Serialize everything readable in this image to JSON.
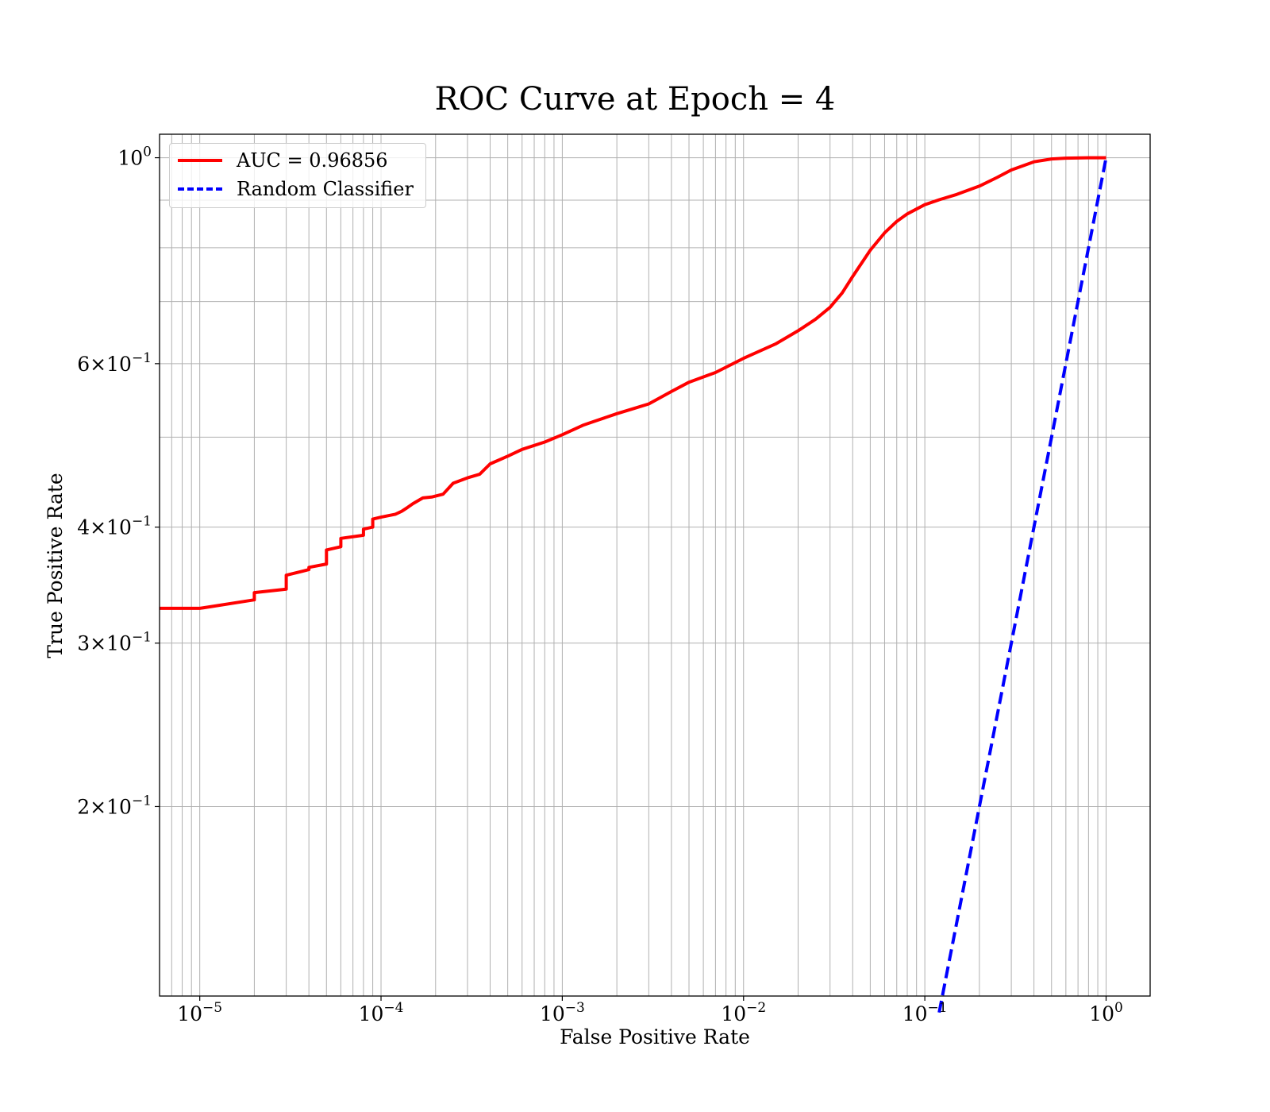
{
  "chart_data": {
    "type": "line",
    "title": "ROC Curve at Epoch = 4",
    "xlabel": "False Positive Rate",
    "ylabel": "True Positive Rate",
    "xscale": "log",
    "yscale": "log",
    "xlim": [
      6e-06,
      1.75
    ],
    "ylim": [
      0.125,
      1.06
    ],
    "grid": "on (major and minor)",
    "legend_position": "upper-left",
    "x_tick_labels": [
      {
        "value": 1e-05,
        "base": "10",
        "exp": "−5"
      },
      {
        "value": 0.0001,
        "base": "10",
        "exp": "−4"
      },
      {
        "value": 0.001,
        "base": "10",
        "exp": "−3"
      },
      {
        "value": 0.01,
        "base": "10",
        "exp": "−2"
      },
      {
        "value": 0.1,
        "base": "10",
        "exp": "−1"
      },
      {
        "value": 1,
        "base": "10",
        "exp": "0"
      }
    ],
    "y_tick_labels": [
      {
        "value": 1,
        "mant": "",
        "base": "10",
        "exp": "0"
      },
      {
        "value": 0.6,
        "mant": "6×",
        "base": "10",
        "exp": "−1"
      },
      {
        "value": 0.4,
        "mant": "4×",
        "base": "10",
        "exp": "−1"
      },
      {
        "value": 0.3,
        "mant": "3×",
        "base": "10",
        "exp": "−1"
      },
      {
        "value": 0.2,
        "mant": "2×",
        "base": "10",
        "exp": "−1"
      }
    ],
    "series": [
      {
        "name": "AUC = 0.96856",
        "color": "#ff0000",
        "style": "solid",
        "x": [
          6e-06,
          1e-05,
          2e-05,
          2e-05,
          3e-05,
          3e-05,
          4e-05,
          4e-05,
          5e-05,
          5e-05,
          6e-05,
          6e-05,
          8e-05,
          8e-05,
          9e-05,
          9e-05,
          0.0001,
          0.00012,
          0.00013,
          0.00014,
          0.00015,
          0.00017,
          0.00019,
          0.00022,
          0.00025,
          0.0003,
          0.00035,
          0.0004,
          0.0005,
          0.0006,
          0.0008,
          0.001,
          0.0013,
          0.0015,
          0.002,
          0.0025,
          0.003,
          0.004,
          0.005,
          0.007,
          0.01,
          0.015,
          0.02,
          0.025,
          0.03,
          0.035,
          0.04,
          0.05,
          0.06,
          0.07,
          0.08,
          0.1,
          0.12,
          0.15,
          0.2,
          0.25,
          0.3,
          0.4,
          0.5,
          0.6,
          0.8,
          1.0
        ],
        "y": [
          0.327,
          0.327,
          0.334,
          0.34,
          0.343,
          0.355,
          0.36,
          0.362,
          0.365,
          0.378,
          0.381,
          0.389,
          0.392,
          0.398,
          0.4,
          0.408,
          0.41,
          0.413,
          0.416,
          0.42,
          0.424,
          0.43,
          0.431,
          0.434,
          0.446,
          0.452,
          0.456,
          0.468,
          0.477,
          0.485,
          0.494,
          0.503,
          0.515,
          0.52,
          0.53,
          0.537,
          0.543,
          0.56,
          0.573,
          0.587,
          0.608,
          0.63,
          0.651,
          0.67,
          0.69,
          0.715,
          0.745,
          0.795,
          0.83,
          0.854,
          0.87,
          0.89,
          0.901,
          0.913,
          0.932,
          0.952,
          0.97,
          0.99,
          0.997,
          0.999,
          1.0,
          1.0
        ]
      },
      {
        "name": "Random Classifier",
        "color": "#0000ff",
        "style": "dashed",
        "x": [
          0.12,
          0.2,
          0.3,
          0.4,
          0.5,
          0.6,
          0.8,
          1.0
        ],
        "y": [
          0.12,
          0.2,
          0.3,
          0.4,
          0.5,
          0.6,
          0.8,
          1.0
        ]
      }
    ]
  }
}
